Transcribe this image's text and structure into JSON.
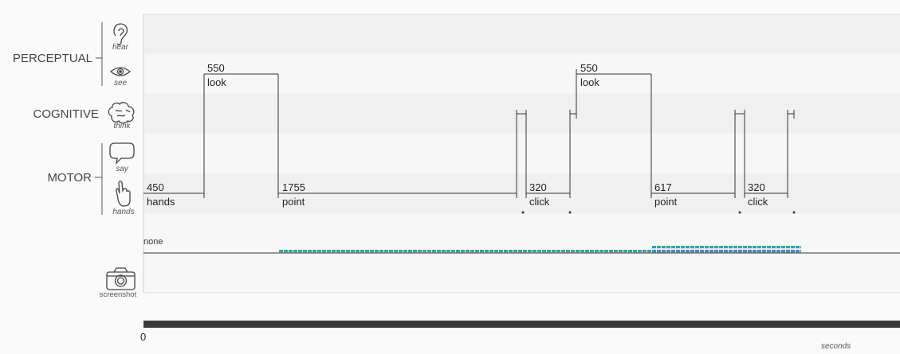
{
  "categories": {
    "perceptual": "PERCEPTUAL",
    "cognitive": "COGNITIVE",
    "motor": "MOTOR"
  },
  "resources": {
    "hear": "hear",
    "see": "see",
    "think": "think",
    "say": "say",
    "hands": "hands",
    "screenshot": "screenshot"
  },
  "operators": [
    {
      "id": "hands-450",
      "duration": "450",
      "label": "hands"
    },
    {
      "id": "look-550-a",
      "duration": "550",
      "label": "look"
    },
    {
      "id": "point-1755",
      "duration": "1755",
      "label": "point"
    },
    {
      "id": "click-320-a",
      "duration": "320",
      "label": "click"
    },
    {
      "id": "look-550-b",
      "duration": "550",
      "label": "look"
    },
    {
      "id": "point-617",
      "duration": "617",
      "label": "point"
    },
    {
      "id": "click-320-b",
      "duration": "320",
      "label": "click"
    }
  ],
  "memory": {
    "none_label": "none"
  },
  "timeline": {
    "start_label": "0",
    "unit_label": "seconds"
  },
  "colors": {
    "band_dark": "#f0f0f0",
    "band_light": "#f7f7f7",
    "line": "#333333",
    "memory_teal": "#3aa39a",
    "memory_blue": "#4a86c8",
    "scrollbar": "#3a3a3a"
  }
}
